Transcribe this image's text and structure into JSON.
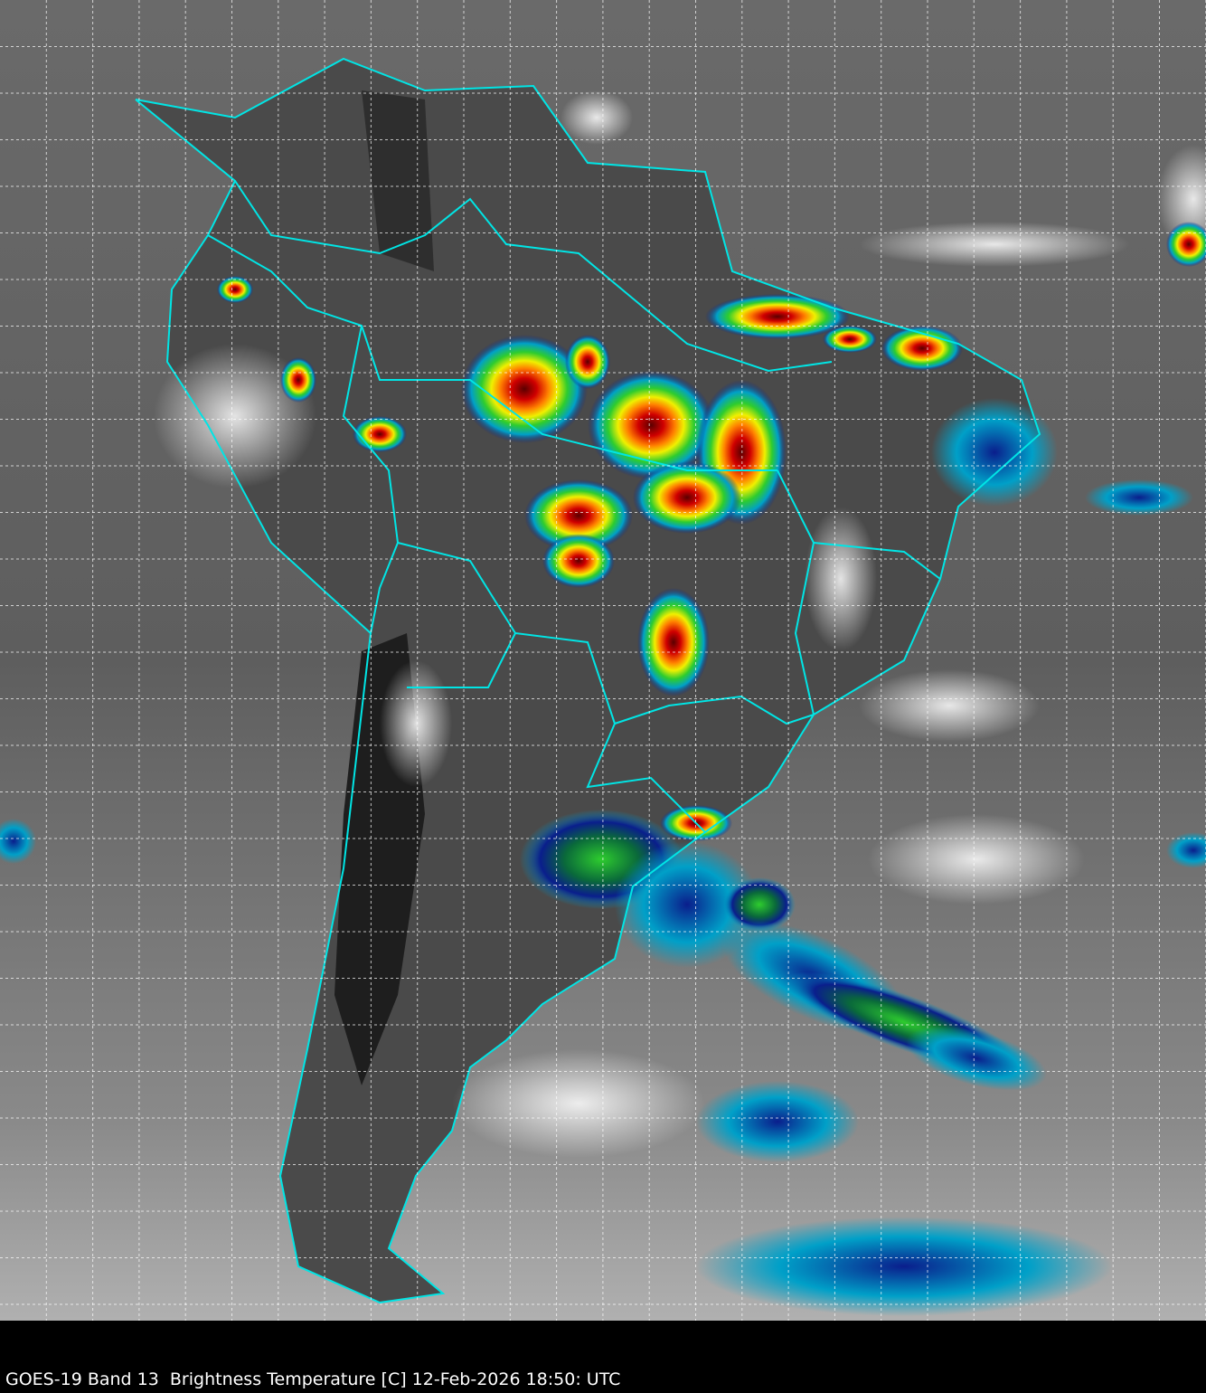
{
  "caption": "GOES-19 Band 13  Brightness Temperature [C] 12-Feb-2026 18:50: UTC",
  "colors": {
    "background_cold_high": "#ffffff",
    "background_warm_low": "#3a3a3a",
    "borders": "#00e5e5",
    "grid": "#ffffff",
    "convection_scale": [
      "#0a1e8c",
      "#00a0c8",
      "#2ecc2e",
      "#f0f000",
      "#ff8000",
      "#d00000",
      "#5a0000",
      "#c8c8c8"
    ]
  },
  "map": {
    "grid": "dashed lat/lon graticule",
    "region": "South America",
    "product": "infrared brightness temperature imagery"
  }
}
